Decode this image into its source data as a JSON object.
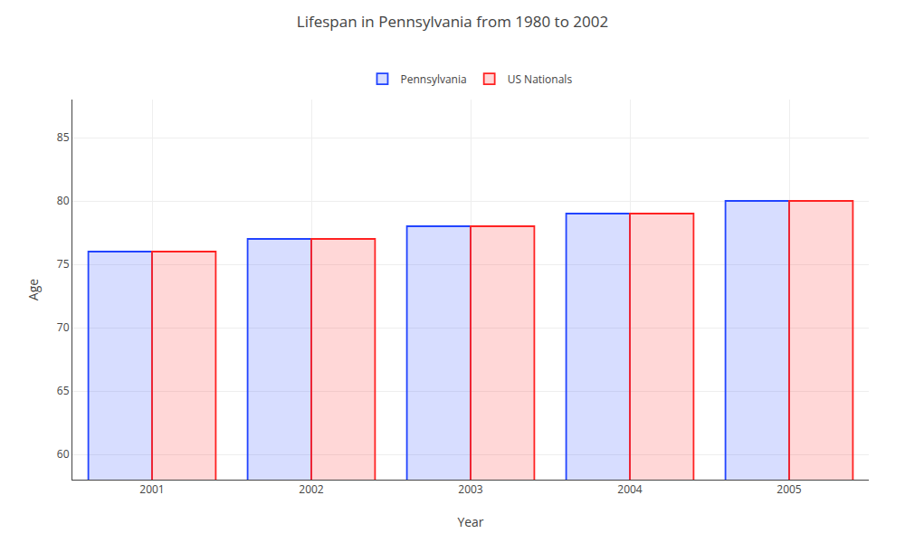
{
  "chart_data": {
    "type": "bar",
    "title": "Lifespan in Pennsylvania from 1980 to 2002",
    "xlabel": "Year",
    "ylabel": "Age",
    "categories": [
      "2001",
      "2002",
      "2003",
      "2004",
      "2005"
    ],
    "series": [
      {
        "name": "Pennsylvania",
        "color": "#2244ff",
        "values": [
          76,
          77,
          78,
          79,
          80
        ]
      },
      {
        "name": "US Nationals",
        "color": "#ff2222",
        "values": [
          76,
          77,
          78,
          79,
          80
        ]
      }
    ],
    "ylim": [
      58,
      88
    ],
    "yticks": [
      60,
      65,
      70,
      75,
      80,
      85
    ],
    "grid": true,
    "legend": "upper center"
  }
}
